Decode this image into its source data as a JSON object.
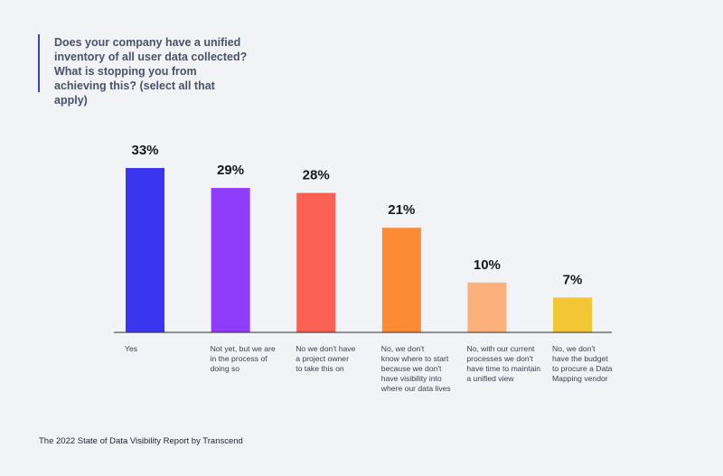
{
  "title": "Does your company have a unified inventory of all user data collected? What is stopping you from achieving this? (select all that apply)",
  "footer": "The 2022 State of Data Visibility Report  by Transcend",
  "chart_data": {
    "type": "bar",
    "categories": [
      [
        "Yes"
      ],
      [
        "Not yet, but we are",
        "in the process of",
        "doing so"
      ],
      [
        "No we don't have",
        "a project owner",
        "to take this on"
      ],
      [
        "No, we don't",
        "know where to start",
        "because we don't",
        "have visibility  into",
        "where our data lives"
      ],
      [
        "No, with our current",
        "processes we don't",
        "have time to maintain",
        "a unified view"
      ],
      [
        "No, we don't",
        "have the budget",
        "to procure a Data",
        "Mapping vendor"
      ]
    ],
    "values": [
      33,
      29,
      28,
      21,
      10,
      7
    ],
    "value_labels": [
      "33%",
      "29%",
      "28%",
      "21%",
      "10%",
      "7%"
    ],
    "colors": [
      "#3a36f0",
      "#8f3dfb",
      "#fb6152",
      "#fd8a35",
      "#fdaf7c",
      "#f3c635"
    ],
    "ylim": [
      0,
      33
    ],
    "grid": false,
    "legend": "none"
  }
}
